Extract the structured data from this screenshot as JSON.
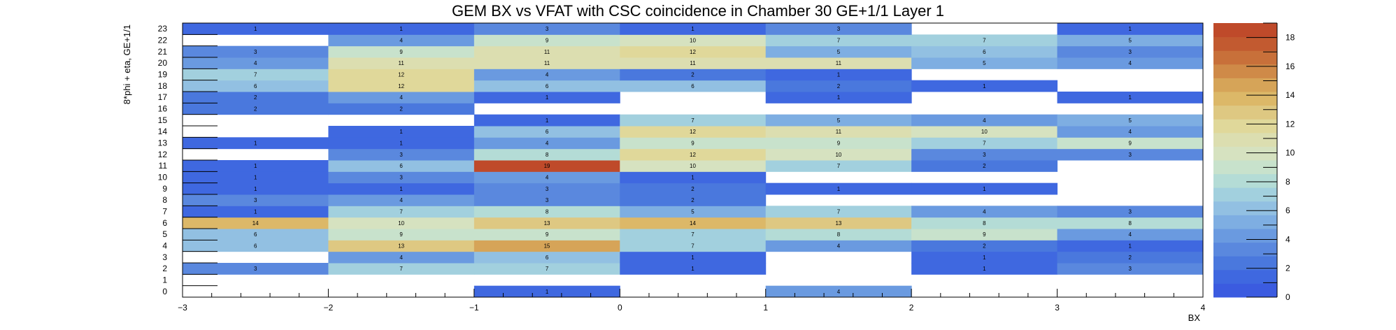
{
  "chart_data": {
    "type": "heatmap",
    "title": "GEM BX vs VFAT with CSC coincidence in Chamber 30 GE+1/1 Layer 1",
    "xlabel": "BX",
    "ylabel": "8*phi + eta, GE+1/1",
    "xlim": [
      -3,
      4
    ],
    "ylim": [
      0,
      24
    ],
    "x_ticks": [
      -3,
      -2,
      -1,
      0,
      1,
      2,
      3,
      4
    ],
    "y_ticks": [
      0,
      1,
      2,
      3,
      4,
      5,
      6,
      7,
      8,
      9,
      10,
      11,
      12,
      13,
      14,
      15,
      16,
      17,
      18,
      19,
      20,
      21,
      22,
      23
    ],
    "x_bins": [
      -2.5,
      -1.5,
      -0.5,
      0.5,
      1.5,
      2.5,
      3.5
    ],
    "zlim": [
      0,
      19
    ],
    "z_ticks": [
      0,
      2,
      4,
      6,
      8,
      10,
      12,
      14,
      16,
      18
    ],
    "palette": [
      "#3b5be0",
      "#3f68e0",
      "#4a78dd",
      "#5a88de",
      "#6a9ae0",
      "#7eaee2",
      "#92c0e2",
      "#a2d0de",
      "#b4dcd6",
      "#c8e2cc",
      "#d6e2c0",
      "#dcdeb0",
      "#e0d89a",
      "#dec882",
      "#dcb868",
      "#d6a458",
      "#cf8a48",
      "#c8703a",
      "#c25a30",
      "#bf4a2a"
    ],
    "values": [
      [
        0,
        0,
        1,
        0,
        4,
        0,
        0
      ],
      [
        0,
        0,
        0,
        0,
        0,
        0,
        0
      ],
      [
        3,
        7,
        7,
        1,
        0,
        1,
        3
      ],
      [
        0,
        4,
        6,
        1,
        0,
        1,
        2
      ],
      [
        6,
        13,
        15,
        7,
        4,
        2,
        1
      ],
      [
        6,
        9,
        9,
        7,
        8,
        9,
        4
      ],
      [
        14,
        10,
        13,
        14,
        13,
        8,
        8
      ],
      [
        1,
        7,
        8,
        5,
        7,
        4,
        3
      ],
      [
        3,
        4,
        3,
        2,
        0,
        0,
        0
      ],
      [
        1,
        1,
        3,
        2,
        1,
        1,
        0
      ],
      [
        1,
        3,
        4,
        1,
        0,
        0,
        0
      ],
      [
        1,
        6,
        19,
        10,
        7,
        2,
        0
      ],
      [
        0,
        3,
        8,
        12,
        10,
        3,
        3
      ],
      [
        1,
        1,
        4,
        9,
        9,
        7,
        9
      ],
      [
        0,
        1,
        6,
        12,
        11,
        10,
        4
      ],
      [
        0,
        0,
        1,
        7,
        5,
        4,
        5
      ],
      [
        2,
        2,
        0,
        0,
        0,
        0,
        0
      ],
      [
        2,
        4,
        1,
        0,
        1,
        0,
        1
      ],
      [
        6,
        12,
        6,
        6,
        2,
        1,
        0
      ],
      [
        7,
        12,
        4,
        2,
        1,
        0,
        0
      ],
      [
        4,
        11,
        11,
        11,
        11,
        5,
        4
      ],
      [
        3,
        9,
        11,
        12,
        5,
        6,
        3
      ],
      [
        0,
        4,
        9,
        10,
        7,
        7,
        5
      ],
      [
        1,
        1,
        3,
        1,
        3,
        0,
        1
      ]
    ],
    "grid": false,
    "legend": "colorbar-right"
  }
}
